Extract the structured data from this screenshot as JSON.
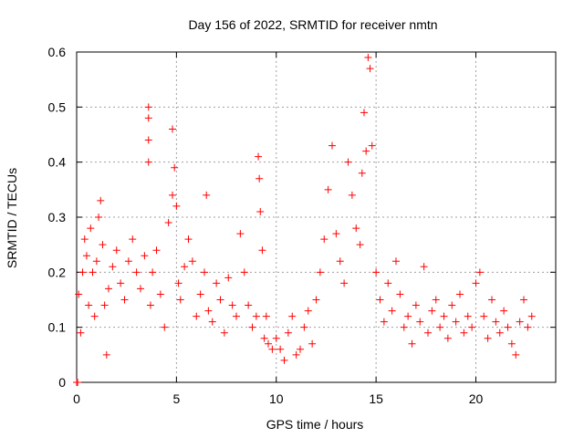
{
  "chart_data": {
    "type": "scatter",
    "title": "Day 156 of 2022, SRMTID for receiver nmtn",
    "xlabel": "GPS time / hours",
    "ylabel": "SRMTID / TECUs",
    "xlim": [
      0,
      24
    ],
    "ylim": [
      0,
      0.6
    ],
    "grid": true,
    "x_ticks": [
      0,
      5,
      10,
      15,
      20
    ],
    "y_ticks": [
      0,
      0.1,
      0.2,
      0.3,
      0.4,
      0.5,
      0.6
    ],
    "x_tick_labels": [
      "0",
      "5",
      "10",
      "15",
      "20"
    ],
    "y_tick_labels": [
      "0",
      "0.1",
      "0.2",
      "0.3",
      "0.4",
      "0.5",
      "0.6"
    ],
    "marker": "+",
    "marker_color": "#ff0000",
    "series": [
      {
        "name": "SRMTID",
        "x": [
          0.0,
          0.05,
          0.1,
          0.2,
          0.3,
          0.4,
          0.5,
          0.6,
          0.7,
          0.8,
          0.9,
          1.0,
          1.1,
          1.2,
          1.3,
          1.4,
          1.5,
          1.6,
          1.8,
          2.0,
          2.2,
          2.4,
          2.6,
          2.8,
          3.0,
          3.2,
          3.4,
          3.6,
          3.6,
          3.6,
          3.6,
          3.7,
          3.8,
          4.0,
          4.2,
          4.4,
          4.6,
          4.8,
          4.8,
          4.9,
          5.0,
          5.1,
          5.2,
          5.4,
          5.6,
          5.8,
          6.0,
          6.2,
          6.4,
          6.5,
          6.6,
          6.8,
          7.0,
          7.2,
          7.4,
          7.6,
          7.8,
          8.0,
          8.2,
          8.4,
          8.6,
          8.8,
          9.0,
          9.1,
          9.15,
          9.2,
          9.3,
          9.4,
          9.5,
          9.6,
          9.8,
          10.0,
          10.2,
          10.4,
          10.6,
          10.8,
          11.0,
          11.2,
          11.4,
          11.6,
          11.8,
          12.0,
          12.2,
          12.4,
          12.6,
          12.8,
          13.0,
          13.2,
          13.4,
          13.6,
          13.8,
          14.0,
          14.2,
          14.3,
          14.4,
          14.5,
          14.6,
          14.7,
          14.8,
          15.0,
          15.2,
          15.4,
          15.6,
          15.8,
          16.0,
          16.2,
          16.4,
          16.6,
          16.8,
          17.0,
          17.2,
          17.4,
          17.6,
          17.8,
          18.0,
          18.2,
          18.4,
          18.6,
          18.8,
          19.0,
          19.2,
          19.4,
          19.6,
          19.8,
          20.0,
          20.2,
          20.4,
          20.6,
          20.8,
          21.0,
          21.2,
          21.4,
          21.6,
          21.8,
          22.0,
          22.2,
          22.4,
          22.6,
          22.8
        ],
        "y": [
          0.0,
          0.0,
          0.16,
          0.09,
          0.2,
          0.26,
          0.23,
          0.14,
          0.28,
          0.2,
          0.12,
          0.22,
          0.3,
          0.33,
          0.25,
          0.14,
          0.05,
          0.17,
          0.21,
          0.24,
          0.18,
          0.15,
          0.22,
          0.26,
          0.2,
          0.17,
          0.23,
          0.5,
          0.48,
          0.44,
          0.4,
          0.14,
          0.2,
          0.24,
          0.16,
          0.1,
          0.29,
          0.34,
          0.46,
          0.39,
          0.32,
          0.18,
          0.15,
          0.21,
          0.26,
          0.22,
          0.12,
          0.16,
          0.2,
          0.34,
          0.13,
          0.11,
          0.18,
          0.15,
          0.09,
          0.19,
          0.14,
          0.12,
          0.27,
          0.2,
          0.14,
          0.1,
          0.12,
          0.41,
          0.37,
          0.31,
          0.24,
          0.08,
          0.12,
          0.07,
          0.06,
          0.08,
          0.06,
          0.04,
          0.09,
          0.12,
          0.05,
          0.06,
          0.1,
          0.13,
          0.07,
          0.15,
          0.2,
          0.26,
          0.35,
          0.43,
          0.27,
          0.22,
          0.18,
          0.4,
          0.34,
          0.28,
          0.25,
          0.38,
          0.49,
          0.42,
          0.59,
          0.57,
          0.43,
          0.2,
          0.15,
          0.11,
          0.18,
          0.13,
          0.22,
          0.16,
          0.1,
          0.12,
          0.07,
          0.14,
          0.11,
          0.21,
          0.09,
          0.13,
          0.15,
          0.1,
          0.12,
          0.08,
          0.14,
          0.11,
          0.16,
          0.09,
          0.12,
          0.1,
          0.18,
          0.2,
          0.12,
          0.08,
          0.15,
          0.11,
          0.09,
          0.13,
          0.1,
          0.07,
          0.05,
          0.11,
          0.15,
          0.1,
          0.12
        ]
      }
    ]
  }
}
